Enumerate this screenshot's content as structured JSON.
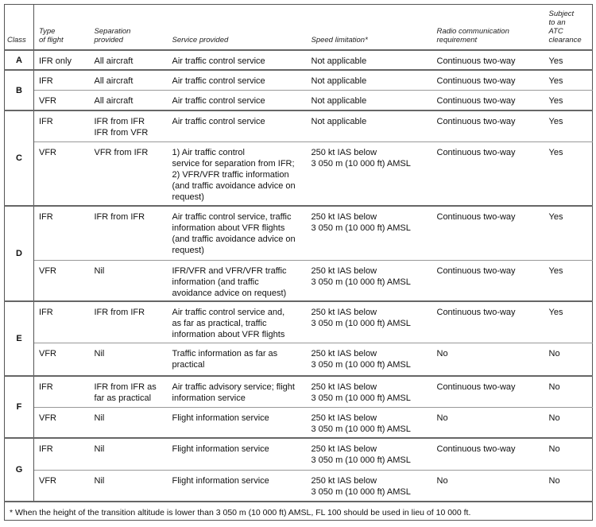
{
  "headers": {
    "class": "Class",
    "type": "Type\nof flight",
    "separation": "Separation\nprovided",
    "service": "Service provided",
    "speed": "Speed limitation*",
    "radio": "Radio communication\nrequirement",
    "atc": "Subject\nto an\nATC\nclearance"
  },
  "groups": [
    {
      "class": "A",
      "rows": [
        {
          "type": "IFR only",
          "separation": "All aircraft",
          "service": "Air traffic control service",
          "speed": "Not applicable",
          "radio": "Continuous two-way",
          "atc": "Yes"
        }
      ]
    },
    {
      "class": "B",
      "rows": [
        {
          "type": "IFR",
          "separation": "All aircraft",
          "service": "Air traffic control service",
          "speed": "Not applicable",
          "radio": "Continuous two-way",
          "atc": "Yes"
        },
        {
          "type": "VFR",
          "separation": "All aircraft",
          "service": "Air traffic control service",
          "speed": "Not applicable",
          "radio": "Continuous two-way",
          "atc": "Yes"
        }
      ]
    },
    {
      "class": "C",
      "rows": [
        {
          "type": "IFR",
          "separation": "IFR from IFR\nIFR from VFR",
          "service": "Air traffic control service",
          "speed": "Not applicable",
          "radio": "Continuous two-way",
          "atc": "Yes"
        },
        {
          "type": "VFR",
          "separation": "VFR from IFR",
          "service": "1) Air traffic control\nservice for separation from IFR;\n2) VFR/VFR traffic information\n(and traffic avoidance advice on\nrequest)",
          "speed": "250 kt IAS below\n3 050 m (10 000 ft) AMSL",
          "radio": "Continuous two-way",
          "atc": "Yes"
        }
      ]
    },
    {
      "class": "D",
      "rows": [
        {
          "type": "IFR",
          "separation": "IFR from IFR",
          "service": "Air traffic control service, traffic\ninformation about VFR flights\n(and traffic avoidance advice on\nrequest)",
          "speed": "250 kt IAS below\n3 050 m (10 000 ft) AMSL",
          "radio": "Continuous two-way",
          "atc": "Yes"
        },
        {
          "type": "VFR",
          "separation": "Nil",
          "service": "IFR/VFR and VFR/VFR traffic\ninformation (and traffic\navoidance advice on request)",
          "speed": "250 kt IAS below\n3 050 m (10 000 ft) AMSL",
          "radio": "Continuous two-way",
          "atc": "Yes"
        }
      ]
    },
    {
      "class": "E",
      "rows": [
        {
          "type": "IFR",
          "separation": "IFR from IFR",
          "service": "Air traffic control service and,\nas far as practical, traffic\ninformation about VFR flights",
          "speed": "250 kt IAS below\n3 050 m (10 000 ft) AMSL",
          "radio": "Continuous two-way",
          "atc": "Yes"
        },
        {
          "type": "VFR",
          "separation": "Nil",
          "service": "Traffic information as far as\npractical",
          "speed": "250 kt IAS below\n3 050 m (10 000 ft) AMSL",
          "radio": "No",
          "atc": "No"
        }
      ]
    },
    {
      "class": "F",
      "rows": [
        {
          "type": "IFR",
          "separation": "IFR from IFR as\nfar as practical",
          "service": "Air traffic advisory service; flight\ninformation service",
          "speed": "250 kt IAS below\n3 050 m (10 000 ft) AMSL",
          "radio": "Continuous two-way",
          "atc": "No"
        },
        {
          "type": "VFR",
          "separation": "Nil",
          "service": "Flight information service",
          "speed": "250 kt IAS below\n3 050 m (10 000 ft) AMSL",
          "radio": "No",
          "atc": "No"
        }
      ]
    },
    {
      "class": "G",
      "rows": [
        {
          "type": "IFR",
          "separation": "Nil",
          "service": "Flight information service",
          "speed": "250 kt IAS below\n3 050 m (10 000 ft) AMSL",
          "radio": "Continuous two-way",
          "atc": "No"
        },
        {
          "type": "VFR",
          "separation": "Nil",
          "service": "Flight information service",
          "speed": "250 kt IAS below\n3 050 m (10 000 ft) AMSL",
          "radio": "No",
          "atc": "No"
        }
      ]
    }
  ],
  "footnote": "*  When the height of the transition altitude is lower than 3 050 m (10 000 ft) AMSL, FL 100 should be used in lieu of 10 000 ft."
}
